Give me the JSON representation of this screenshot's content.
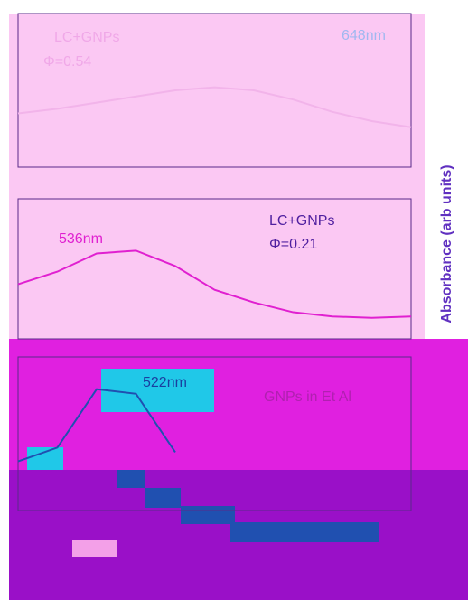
{
  "chart_data": [
    {
      "type": "line",
      "annotations": [
        "LC+GNPs",
        "Φ=0.54",
        "648nm"
      ],
      "x": [
        430,
        470,
        510,
        550,
        590,
        630,
        670,
        710,
        750,
        790,
        830
      ],
      "values": [
        0.35,
        0.38,
        0.42,
        0.46,
        0.5,
        0.52,
        0.5,
        0.44,
        0.36,
        0.3,
        0.26
      ],
      "color": "#f2b4ea",
      "xlim": [
        430,
        830
      ],
      "ylim": [
        0,
        1
      ]
    },
    {
      "type": "line",
      "annotations": [
        "536nm",
        "LC+GNPs",
        "Φ=0.21"
      ],
      "ylabel": "Absorbance (arb units)",
      "x": [
        430,
        470,
        510,
        550,
        590,
        630,
        670,
        710,
        750,
        790,
        830
      ],
      "values": [
        0.39,
        0.48,
        0.61,
        0.63,
        0.52,
        0.35,
        0.26,
        0.19,
        0.16,
        0.15,
        0.16
      ],
      "color": "#e020d0",
      "xlim": [
        430,
        830
      ],
      "ylim": [
        0,
        1
      ]
    },
    {
      "type": "line",
      "annotations": [
        "522nm",
        "GNPs in Et Al"
      ],
      "x": [
        430,
        470,
        510,
        550,
        590
      ],
      "values": [
        0.32,
        0.41,
        0.79,
        0.76,
        0.38
      ],
      "color": "#2050b0",
      "xlim": [
        430,
        830
      ],
      "ylim": [
        0,
        1
      ]
    }
  ]
}
